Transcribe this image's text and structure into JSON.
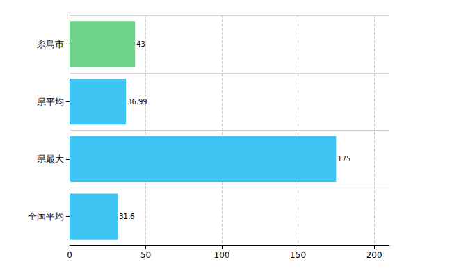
{
  "chart_data": {
    "type": "bar",
    "orientation": "horizontal",
    "categories": [
      "糸島市",
      "県平均",
      "県最大",
      "全国平均"
    ],
    "values": [
      43,
      36.99,
      175,
      31.6
    ],
    "colors": [
      "#6fd38b",
      "#3ec5f3",
      "#3ec5f3",
      "#3ec5f3"
    ],
    "xlim": [
      0,
      210
    ],
    "xticks": [
      0,
      50,
      100,
      150,
      200
    ],
    "grid": true,
    "data_labels": true
  }
}
